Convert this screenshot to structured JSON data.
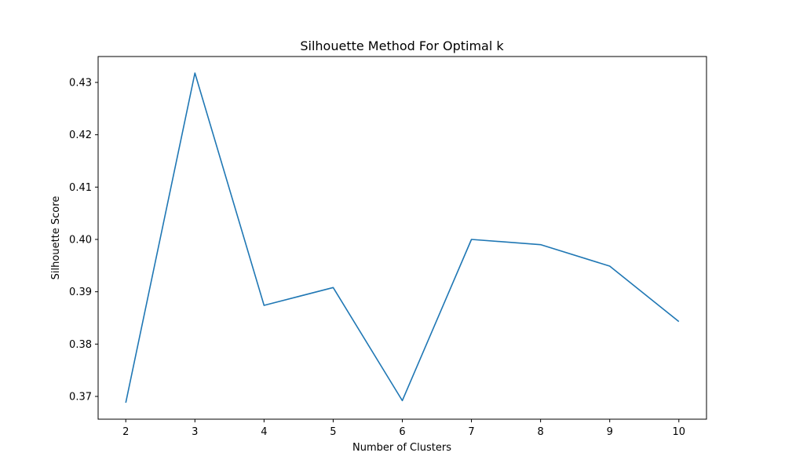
{
  "chart_data": {
    "type": "line",
    "title": "Silhouette Method For Optimal k",
    "xlabel": "Number of Clusters",
    "ylabel": "Silhouette Score",
    "x": [
      2,
      3,
      4,
      5,
      6,
      7,
      8,
      9,
      10
    ],
    "series": [
      {
        "values": [
          0.3688,
          0.4318,
          0.3874,
          0.3908,
          0.3692,
          0.4,
          0.399,
          0.3949,
          0.3843
        ],
        "color": "#1f77b4"
      }
    ],
    "xticks": [
      "2",
      "3",
      "4",
      "5",
      "6",
      "7",
      "8",
      "9",
      "10"
    ],
    "yticks": [
      "0.37",
      "0.38",
      "0.39",
      "0.40",
      "0.41",
      "0.42",
      "0.43"
    ],
    "xlim": [
      1.6,
      10.4
    ],
    "ylim": [
      0.36565,
      0.43495
    ],
    "grid": false
  }
}
